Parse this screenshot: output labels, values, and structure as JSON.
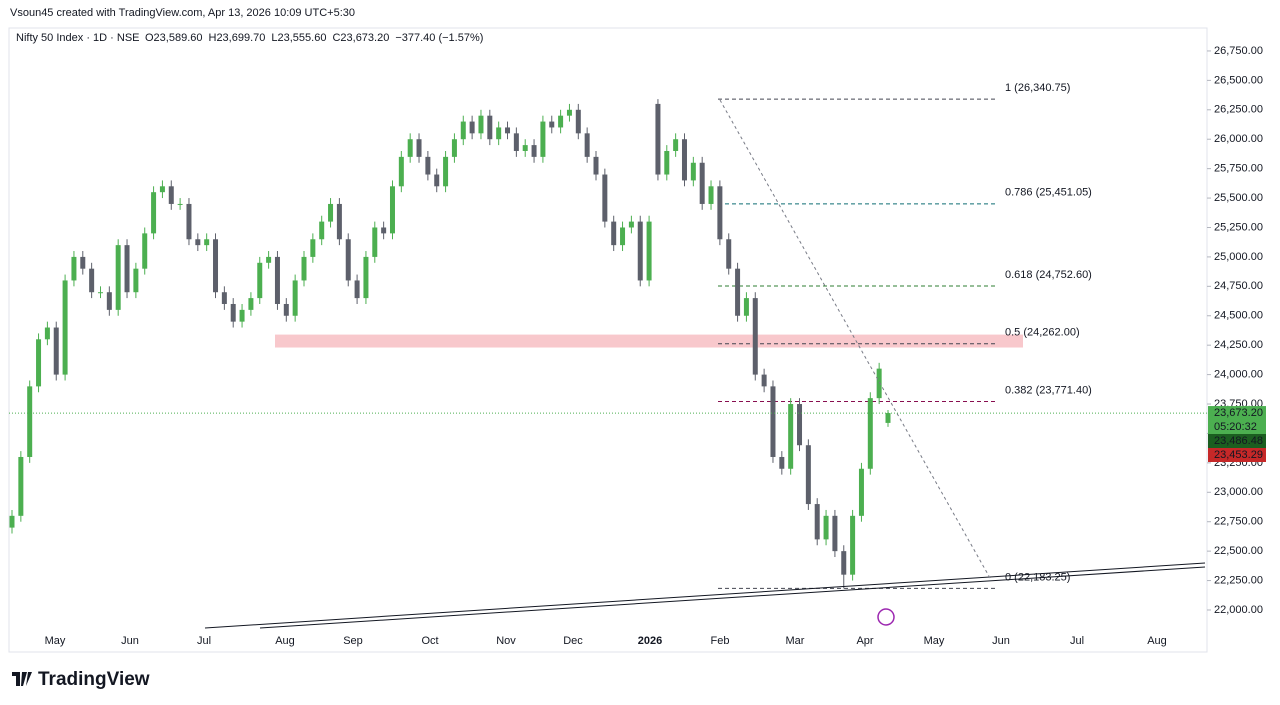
{
  "header": {
    "credit": "Vsoun45 created with TradingView.com, Apr 13, 2026 10:09 UTC+5:30",
    "logo": "TradingView"
  },
  "chart_data": {
    "type": "candlestick",
    "title": "Nifty 50 Index · 1D · NSE",
    "ohlc_labels": [
      "O23,589.60",
      "H23,699.70",
      "L23,555.60",
      "C23,673.20"
    ],
    "change_label": "−377.40 (−1.57%)",
    "up_color": "#4caf50",
    "down_color": "#5d606b",
    "ylim": [
      21643,
      26945
    ],
    "yticks": [
      {
        "value": 22000,
        "label": "22,000.00"
      },
      {
        "value": 22250,
        "label": "22,250.00"
      },
      {
        "value": 22500,
        "label": "22,500.00"
      },
      {
        "value": 22750,
        "label": "22,750.00"
      },
      {
        "value": 23000,
        "label": "23,000.00"
      },
      {
        "value": 23250,
        "label": "23,250.00"
      },
      {
        "value": 23500,
        "label": "23,500.00"
      },
      {
        "value": 23750,
        "label": "23,750.00"
      },
      {
        "value": 24000,
        "label": "24,000.00"
      },
      {
        "value": 24250,
        "label": "24,250.00"
      },
      {
        "value": 24500,
        "label": "24,500.00"
      },
      {
        "value": 24750,
        "label": "24,750.00"
      },
      {
        "value": 25000,
        "label": "25,000.00"
      },
      {
        "value": 25250,
        "label": "25,250.00"
      },
      {
        "value": 25500,
        "label": "25,500.00"
      },
      {
        "value": 25750,
        "label": "25,750.00"
      },
      {
        "value": 26000,
        "label": "26,000.00"
      },
      {
        "value": 26250,
        "label": "26,250.00"
      },
      {
        "value": 26500,
        "label": "26,500.00"
      },
      {
        "value": 26750,
        "label": "26,750.00"
      }
    ],
    "months": [
      "May",
      "Jun",
      "Jul",
      "Aug",
      "Sep",
      "Oct",
      "Nov",
      "Dec",
      "2026",
      "Feb",
      "Mar",
      "Apr",
      "May",
      "Jun",
      "Jul",
      "Aug"
    ],
    "open": [
      22700,
      22800,
      23300,
      23900,
      24300,
      24400,
      24000,
      24800,
      25000,
      24900,
      24700,
      24700,
      24550,
      25100,
      24700,
      24900,
      25200,
      25550,
      25600,
      25450,
      25450,
      25150,
      25100,
      25150,
      24700,
      24600,
      24450,
      24550,
      24650,
      24950,
      25000,
      24600,
      24500,
      24800,
      25000,
      25150,
      25300,
      25450,
      25150,
      24800,
      24650,
      25000,
      25250,
      25200,
      25600,
      25850,
      26000,
      25850,
      25700,
      25600,
      25850,
      26000,
      26150,
      26050,
      26200,
      26000,
      26100,
      26050,
      25900,
      25950,
      25850,
      26150,
      26100,
      26200,
      26250,
      26050,
      25850,
      25700,
      25300,
      25100,
      25250,
      25300,
      24800,
      26300,
      25700,
      25900,
      26000,
      25650,
      25800,
      25450,
      25600,
      25150,
      24900,
      24500,
      24650,
      24000,
      23900,
      23300,
      23200,
      23750,
      23400,
      22900,
      22600,
      22800,
      22500,
      22300,
      22800,
      23200,
      23800,
      23589.6
    ],
    "high": [
      22850,
      23350,
      23950,
      24350,
      24450,
      24450,
      24850,
      25050,
      25050,
      24950,
      24750,
      24750,
      25150,
      25150,
      24950,
      25250,
      25600,
      25650,
      25650,
      25500,
      25500,
      25200,
      25200,
      25200,
      24750,
      24650,
      24600,
      24700,
      25000,
      25050,
      25050,
      24650,
      24850,
      25050,
      25200,
      25350,
      25500,
      25500,
      25200,
      24850,
      25050,
      25300,
      25300,
      25650,
      25900,
      26050,
      26050,
      25900,
      25750,
      25900,
      26050,
      26200,
      26200,
      26250,
      26250,
      26150,
      26150,
      26100,
      26000,
      26000,
      26200,
      26200,
      26250,
      26300,
      26300,
      26100,
      25900,
      25750,
      25350,
      25300,
      25350,
      25350,
      25350,
      26340.75,
      25950,
      26050,
      26050,
      25850,
      25850,
      25650,
      25650,
      25200,
      24950,
      24700,
      24700,
      24050,
      23950,
      23350,
      23800,
      23800,
      23450,
      22950,
      22850,
      22850,
      22550,
      22850,
      23250,
      23850,
      24100,
      23699.7
    ],
    "low": [
      22650,
      22750,
      23250,
      23850,
      24250,
      23950,
      23950,
      24750,
      24850,
      24650,
      24650,
      24500,
      24500,
      24650,
      24650,
      24850,
      25150,
      25500,
      25400,
      25400,
      25100,
      25050,
      25050,
      24650,
      24550,
      24400,
      24400,
      24500,
      24600,
      24900,
      24550,
      24450,
      24450,
      24750,
      24950,
      25100,
      25250,
      25100,
      24750,
      24600,
      24600,
      24950,
      25150,
      25150,
      25550,
      25800,
      25800,
      25650,
      25550,
      25550,
      25800,
      25950,
      26000,
      26000,
      25950,
      25950,
      26000,
      25850,
      25850,
      25800,
      25800,
      26050,
      26050,
      26150,
      26000,
      25800,
      25650,
      25250,
      25050,
      25050,
      25200,
      24750,
      24750,
      25650,
      25650,
      25850,
      25600,
      25600,
      25400,
      25400,
      25100,
      24850,
      24450,
      24450,
      23950,
      23850,
      23250,
      23150,
      23150,
      23350,
      22850,
      22550,
      22550,
      22450,
      22183.25,
      22250,
      22750,
      23150,
      23750,
      23555.6
    ],
    "close": [
      22800,
      23300,
      23900,
      24300,
      24400,
      24000,
      24800,
      25000,
      24900,
      24700,
      24700,
      24550,
      25100,
      24700,
      24900,
      25200,
      25550,
      25600,
      25450,
      25450,
      25150,
      25100,
      25150,
      24700,
      24600,
      24450,
      24550,
      24650,
      24950,
      25000,
      24600,
      24500,
      24800,
      25000,
      25150,
      25300,
      25450,
      25150,
      24800,
      24650,
      25000,
      25250,
      25200,
      25600,
      25850,
      26000,
      25850,
      25700,
      25600,
      25850,
      26000,
      26150,
      26050,
      26200,
      26000,
      26100,
      26050,
      25900,
      25950,
      25850,
      26150,
      26100,
      26200,
      26250,
      26050,
      25850,
      25700,
      25300,
      25100,
      25250,
      25300,
      24800,
      25300,
      25700,
      25900,
      26000,
      25650,
      25800,
      25450,
      25600,
      25150,
      24900,
      24500,
      24650,
      24000,
      23900,
      23300,
      23200,
      23750,
      23400,
      22900,
      22600,
      22800,
      22500,
      22300,
      22800,
      23200,
      23800,
      24050.6,
      23673.2
    ],
    "fib_levels": [
      {
        "value": 26340.75,
        "label": "1 (26,340.75)",
        "color": "#434651"
      },
      {
        "value": 25451.05,
        "label": "0.786 (25,451.05)",
        "color": "#0f6e73"
      },
      {
        "value": 24752.6,
        "label": "0.618 (24,752.60)",
        "color": "#2e7d32"
      },
      {
        "value": 24262,
        "label": "0.5 (24,262.00)",
        "color": "#434651"
      },
      {
        "value": 23771.4,
        "label": "0.382 (23,771.40)",
        "color": "#880e4f"
      },
      {
        "value": 22183.25,
        "label": "0 (22,183.25)",
        "color": "#434651"
      }
    ],
    "zone": [
      24230,
      24340
    ],
    "zone_color": "#f8c8cc",
    "price_badges": [
      {
        "value": 23673.2,
        "label": "23,673.20",
        "color": "#4caf50"
      },
      {
        "value": 23486.48,
        "label": "23,486.48",
        "color": "#1b5e20"
      },
      {
        "value": 23453.29,
        "label": "23,453.29",
        "color": "#c62828"
      }
    ],
    "countdown": "05:20:32"
  }
}
